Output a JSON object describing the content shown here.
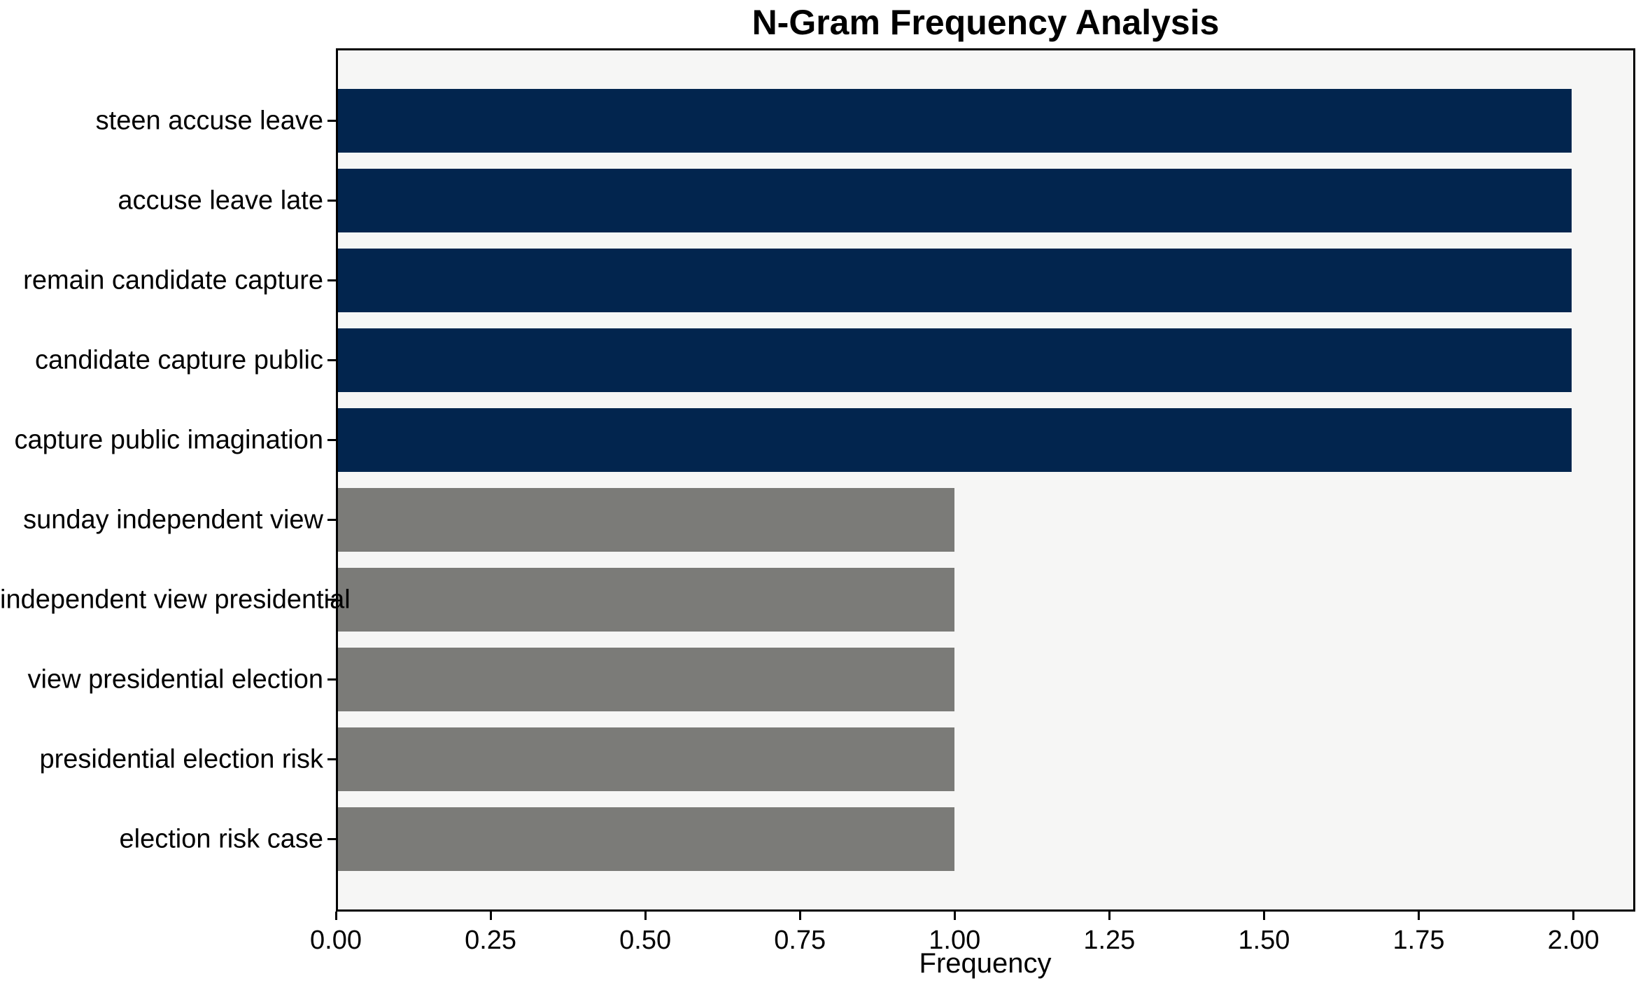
{
  "chart_data": {
    "type": "bar",
    "orientation": "horizontal",
    "title": "N-Gram Frequency Analysis",
    "xlabel": "Frequency",
    "ylabel": "",
    "categories": [
      "steen accuse leave",
      "accuse leave late",
      "remain candidate capture",
      "candidate capture public",
      "capture public imagination",
      "sunday independent view",
      "independent view presidential",
      "view presidential election",
      "presidential election risk",
      "election risk case"
    ],
    "values": [
      2,
      2,
      2,
      2,
      2,
      1,
      1,
      1,
      1,
      1
    ],
    "bar_colors": [
      "#02254e",
      "#02254e",
      "#02254e",
      "#02254e",
      "#02254e",
      "#7b7b78",
      "#7b7b78",
      "#7b7b78",
      "#7b7b78",
      "#7b7b78"
    ],
    "xlim": [
      0,
      2.1
    ],
    "xticks": [
      0,
      0.25,
      0.5,
      0.75,
      1.0,
      1.25,
      1.5,
      1.75,
      2.0
    ],
    "xtick_labels": [
      "0.00",
      "0.25",
      "0.50",
      "0.75",
      "1.00",
      "1.25",
      "1.50",
      "1.75",
      "2.00"
    ],
    "grid": false,
    "legend_position": "none",
    "colors": {
      "plot_background": "#f6f6f5",
      "figure_background": "#ffffff",
      "spine": "#000000",
      "text": "#000000",
      "navy_bar": "#02254e",
      "gray_bar": "#7b7b78"
    }
  }
}
